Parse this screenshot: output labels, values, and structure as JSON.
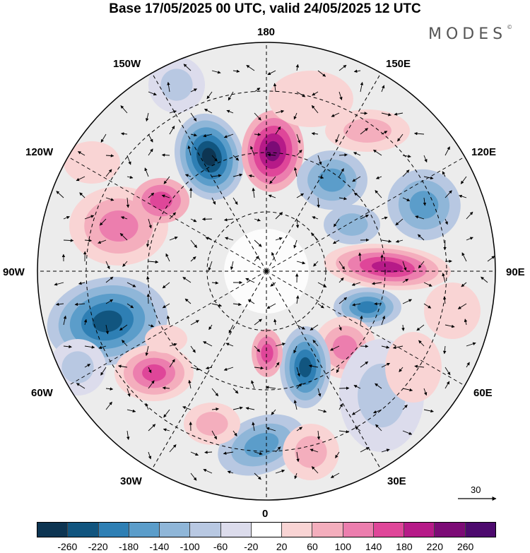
{
  "title": "Base 17/05/2025 00 UTC, valid 24/05/2025 12 UTC",
  "brand": "MODES",
  "brand_mark": "©",
  "map": {
    "projection": "north polar stereographic",
    "longitude_labels": {
      "top": "180",
      "bottom": "0",
      "left": "90W",
      "right": "90E",
      "upper_left_1": "150W",
      "upper_left_2": "120W",
      "upper_right_1": "150E",
      "upper_right_2": "120E",
      "lower_left_1": "60W",
      "lower_left_2": "30W",
      "lower_right_1": "60E",
      "lower_right_2": "30E"
    },
    "reference_vector_label": "30",
    "colors": {
      "land_shading": "#e6e6e6",
      "grid_dash": "#000000"
    }
  },
  "colorbar": {
    "tick_labels": [
      "-260",
      "-220",
      "-180",
      "-140",
      "-100",
      "-60",
      "-20",
      "20",
      "60",
      "100",
      "140",
      "180",
      "220",
      "260"
    ],
    "colors": [
      "#0d3552",
      "#11557f",
      "#2e7fb4",
      "#5b9dca",
      "#8fb6d8",
      "#b8c8e2",
      "#dcdcec",
      "#ffffff",
      "#f9d4d4",
      "#f4aebd",
      "#ec7eae",
      "#df4699",
      "#b61a88",
      "#7c0b76",
      "#4d0a6e"
    ]
  }
}
